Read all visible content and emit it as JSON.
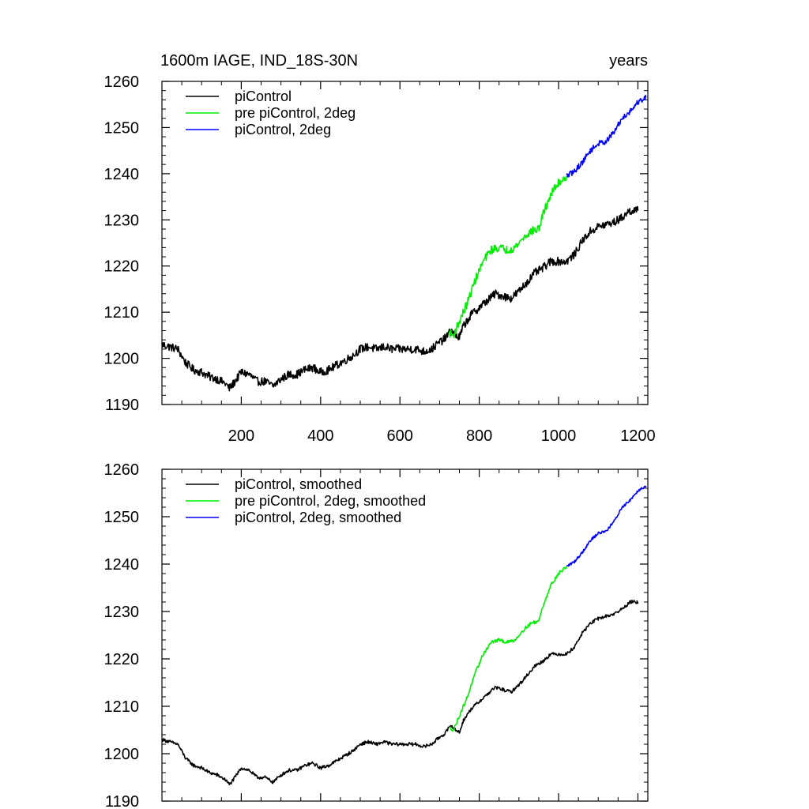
{
  "chart_data": [
    {
      "type": "line",
      "title": "1600m IAGE, IND_18S-30N",
      "title_right": "years",
      "xlim": [
        0,
        1225
      ],
      "ylim": [
        1190,
        1260
      ],
      "x_ticks": [
        200,
        400,
        600,
        800,
        1000,
        1200
      ],
      "x_tick_labels": [
        "200",
        "400",
        "600",
        "800",
        "1000",
        "1200"
      ],
      "y_ticks": [
        1190,
        1200,
        1210,
        1220,
        1230,
        1240,
        1250,
        1260
      ],
      "y_tick_labels": [
        "1190",
        "1200",
        "1210",
        "1220",
        "1230",
        "1240",
        "1250",
        "1260"
      ],
      "legend_position": "top-left",
      "series": [
        {
          "name": "piControl",
          "color": "#000000",
          "noise": 0.9,
          "x": [
            0,
            20,
            40,
            60,
            80,
            100,
            120,
            140,
            160,
            170,
            180,
            200,
            220,
            240,
            260,
            280,
            300,
            320,
            340,
            360,
            380,
            400,
            420,
            440,
            460,
            480,
            500,
            520,
            540,
            560,
            580,
            600,
            620,
            640,
            660,
            680,
            700,
            710,
            720,
            730,
            740,
            750,
            760,
            780,
            800,
            820,
            840,
            860,
            880,
            900,
            920,
            940,
            960,
            980,
            1000,
            1020,
            1040,
            1060,
            1080,
            1100,
            1120,
            1140,
            1160,
            1180,
            1200
          ],
          "y": [
            1203,
            1202.5,
            1202,
            1199,
            1197.5,
            1197,
            1196,
            1195.5,
            1194.5,
            1193.5,
            1194.5,
            1197,
            1196.5,
            1195,
            1195,
            1194,
            1195.5,
            1196.5,
            1196.5,
            1197.5,
            1198,
            1197,
            1197.5,
            1198.5,
            1199.5,
            1200.5,
            1202,
            1202.5,
            1202,
            1202.5,
            1202,
            1202,
            1202,
            1202,
            1201.5,
            1202,
            1203.5,
            1204,
            1205,
            1206,
            1205,
            1204.5,
            1207,
            1209.5,
            1211,
            1212.5,
            1214,
            1213.5,
            1213,
            1214.5,
            1216.5,
            1218.5,
            1219.5,
            1221,
            1221,
            1221,
            1222.5,
            1225.5,
            1227.5,
            1228.5,
            1229,
            1229.5,
            1230.5,
            1232,
            1232
          ]
        },
        {
          "name": "pre piControl, 2deg",
          "color": "#00ee00",
          "noise": 0.9,
          "x": [
            725,
            735,
            750,
            770,
            790,
            810,
            830,
            850,
            870,
            890,
            910,
            930,
            950,
            960,
            980,
            1000,
            1020
          ],
          "y": [
            1205.5,
            1205,
            1208,
            1212,
            1217,
            1221,
            1223.5,
            1224,
            1223.5,
            1224,
            1226,
            1227.5,
            1228,
            1231,
            1235.5,
            1238,
            1239.5
          ]
        },
        {
          "name": "piControl, 2deg",
          "color": "#0000ff",
          "noise": 0.6,
          "x": [
            1020,
            1040,
            1060,
            1080,
            1100,
            1120,
            1140,
            1160,
            1180,
            1200,
            1220
          ],
          "y": [
            1239.5,
            1240.5,
            1242.5,
            1245,
            1246.5,
            1247,
            1249,
            1252,
            1253.5,
            1255.5,
            1256.5
          ]
        }
      ]
    },
    {
      "type": "line",
      "xlim": [
        0,
        1225
      ],
      "ylim": [
        1190,
        1260
      ],
      "x_ticks": [
        200,
        400,
        600,
        800,
        1000,
        1200
      ],
      "y_ticks": [
        1190,
        1200,
        1210,
        1220,
        1230,
        1240,
        1250,
        1260
      ],
      "y_tick_labels": [
        "1190",
        "1200",
        "1210",
        "1220",
        "1230",
        "1240",
        "1250",
        "1260"
      ],
      "legend_position": "top-left",
      "series": [
        {
          "name": "piControl, smoothed",
          "color": "#000000",
          "noise": 0.35,
          "x": [
            0,
            20,
            40,
            60,
            80,
            100,
            120,
            140,
            160,
            170,
            180,
            200,
            220,
            240,
            260,
            280,
            300,
            320,
            340,
            360,
            380,
            400,
            420,
            440,
            460,
            480,
            500,
            520,
            540,
            560,
            580,
            600,
            620,
            640,
            660,
            680,
            700,
            710,
            720,
            730,
            740,
            750,
            760,
            780,
            800,
            820,
            840,
            860,
            880,
            900,
            920,
            940,
            960,
            980,
            1000,
            1020,
            1040,
            1060,
            1080,
            1100,
            1120,
            1140,
            1160,
            1180,
            1200
          ],
          "y": [
            1203,
            1202.5,
            1202,
            1199,
            1197.5,
            1197,
            1196,
            1195.5,
            1194.5,
            1193.5,
            1194.5,
            1197,
            1196.5,
            1195,
            1195,
            1194,
            1195.5,
            1196.5,
            1196.5,
            1197.5,
            1198,
            1197,
            1197.5,
            1198.5,
            1199.5,
            1200.5,
            1202,
            1202.5,
            1202,
            1202.5,
            1202,
            1202,
            1202,
            1202,
            1201.5,
            1202,
            1203.5,
            1204,
            1205,
            1206,
            1205,
            1204.5,
            1207,
            1209.5,
            1211,
            1212.5,
            1214,
            1213.5,
            1213,
            1214.5,
            1216.5,
            1218.5,
            1219.5,
            1221,
            1221,
            1221,
            1222.5,
            1225.5,
            1227.5,
            1228.5,
            1229,
            1229.5,
            1230.5,
            1232,
            1232
          ]
        },
        {
          "name": "pre piControl, 2deg, smoothed",
          "color": "#00ee00",
          "noise": 0.35,
          "x": [
            725,
            735,
            750,
            770,
            790,
            810,
            830,
            850,
            870,
            890,
            910,
            930,
            950,
            960,
            980,
            1000,
            1020
          ],
          "y": [
            1205.5,
            1205,
            1208,
            1212,
            1217,
            1221,
            1223.5,
            1224,
            1223.5,
            1224,
            1226,
            1227.5,
            1228,
            1231,
            1235.5,
            1238,
            1239.5
          ]
        },
        {
          "name": "piControl, 2deg, smoothed",
          "color": "#0000ff",
          "noise": 0.3,
          "x": [
            1020,
            1040,
            1060,
            1080,
            1100,
            1120,
            1140,
            1160,
            1180,
            1200,
            1220
          ],
          "y": [
            1239.5,
            1240.5,
            1242.5,
            1245,
            1246.5,
            1247,
            1249,
            1252,
            1253.5,
            1255.5,
            1256.5
          ]
        }
      ]
    }
  ]
}
